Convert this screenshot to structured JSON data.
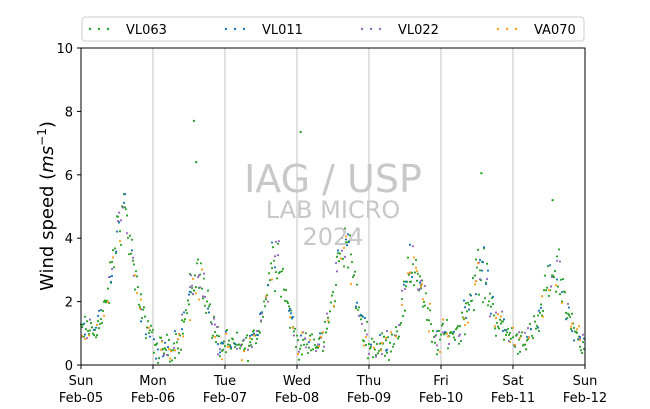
{
  "chart_data": {
    "type": "scatter",
    "ylabel": "Wind speed (",
    "ylabel_unit_base": "ms",
    "ylabel_unit_exp": "−1",
    "ylabel_close": ")",
    "ylim": [
      0,
      10
    ],
    "yticks": [
      "0",
      "2",
      "4",
      "6",
      "8",
      "10"
    ],
    "xlim": [
      "2023-02-05",
      "2023-02-12"
    ],
    "x_day_ticks": [
      {
        "weekday": "Sun",
        "date": "Feb-05"
      },
      {
        "weekday": "Mon",
        "date": "Feb-06"
      },
      {
        "weekday": "Tue",
        "date": "Feb-07"
      },
      {
        "weekday": "Wed",
        "date": "Feb-08"
      },
      {
        "weekday": "Thu",
        "date": "Feb-09"
      },
      {
        "weekday": "Fri",
        "date": "Feb-10"
      },
      {
        "weekday": "Sat",
        "date": "Feb-11"
      },
      {
        "weekday": "Sun",
        "date": "Feb-12"
      }
    ],
    "grid": "vertical lines at day boundaries",
    "legend_position": "top",
    "series": [
      {
        "name": "VL063",
        "color": "#2ca02c"
      },
      {
        "name": "VL011",
        "color": "#1f77b4"
      },
      {
        "name": "VL022",
        "color": "#9467bd"
      },
      {
        "name": "VA070",
        "color": "#ff9f1c"
      }
    ],
    "diurnal_peaks_ms": [
      {
        "day": "Feb-05",
        "peak_hour": 14,
        "peak": 4.8,
        "night": 1.1
      },
      {
        "day": "Feb-06",
        "peak_hour": 15,
        "peak": 2.9,
        "night": 0.5
      },
      {
        "day": "Feb-07",
        "peak_hour": 17,
        "peak": 3.4,
        "night": 0.6
      },
      {
        "day": "Feb-08",
        "peak_hour": 16,
        "peak": 3.9,
        "night": 0.6
      },
      {
        "day": "Feb-09",
        "peak_hour": 15,
        "peak": 3.1,
        "night": 0.6
      },
      {
        "day": "Feb-10",
        "peak_hour": 13,
        "peak": 2.9,
        "night": 1.0
      },
      {
        "day": "Feb-11",
        "peak_hour": 14,
        "peak": 3.0,
        "night": 0.8
      }
    ],
    "outliers_ms": [
      7.7,
      7.35,
      6.4,
      6.05,
      5.2
    ]
  },
  "watermark": {
    "line1": "IAG / USP",
    "line2": "LAB MICRO",
    "line3": "2024"
  }
}
